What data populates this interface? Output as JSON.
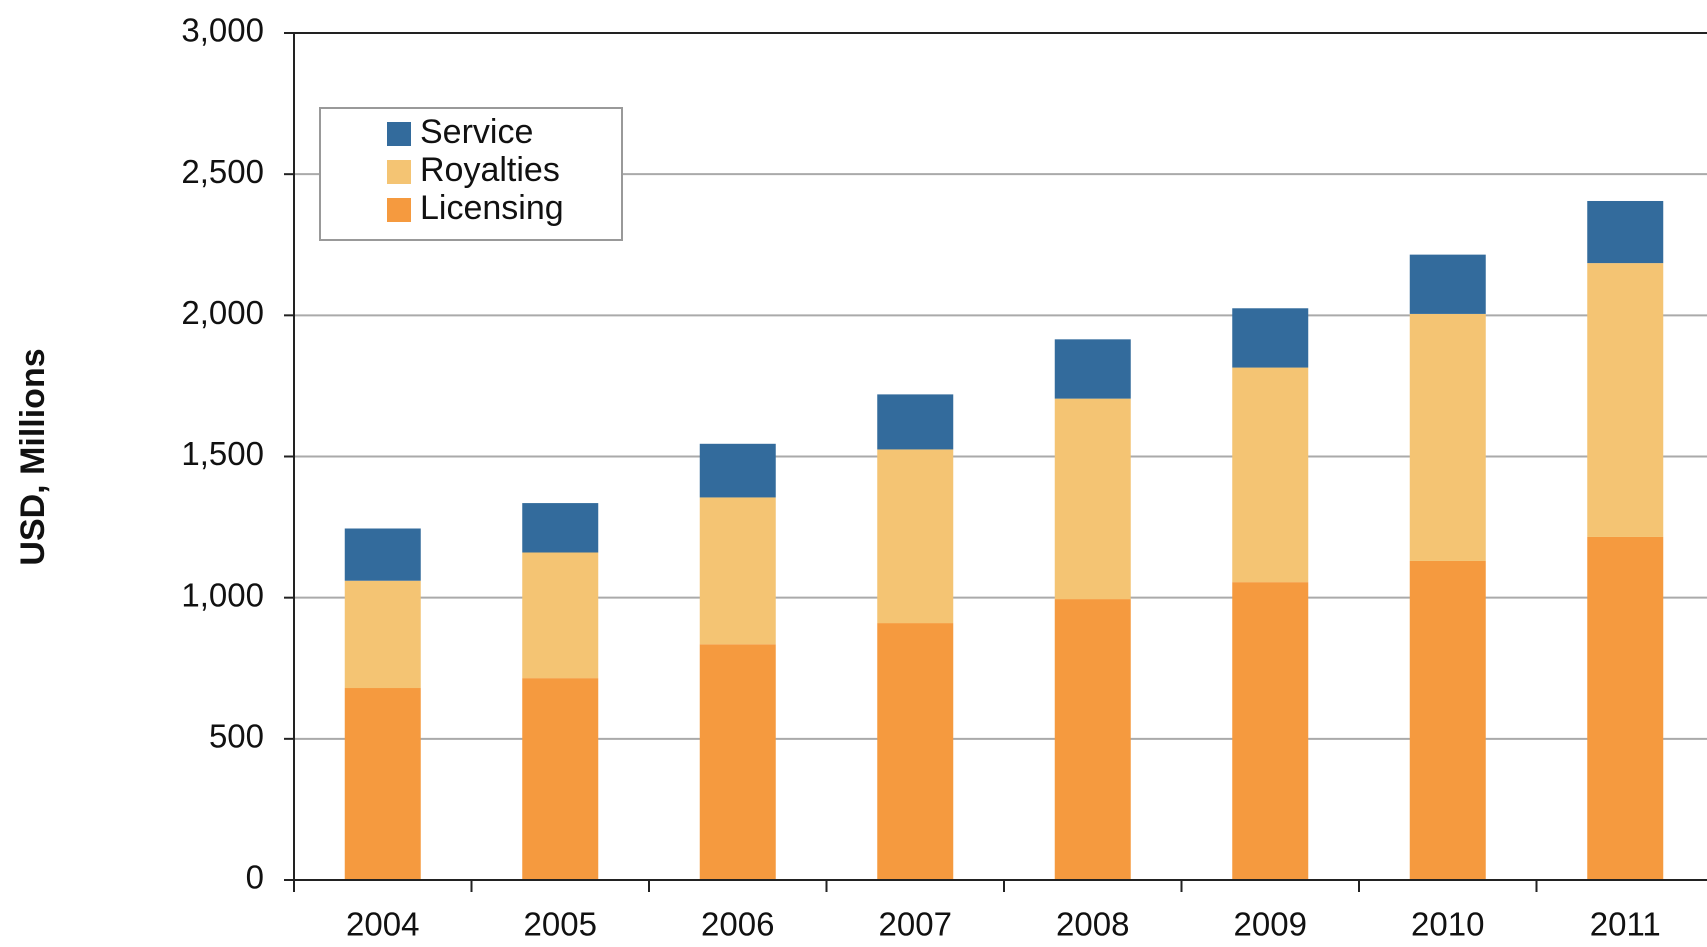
{
  "chart_data": {
    "type": "stacked_bar",
    "y_label": "USD, Millions",
    "categories": [
      "2004",
      "2005",
      "2006",
      "2007",
      "2008",
      "2009",
      "2010",
      "2011"
    ],
    "series": [
      {
        "name": "Licensing",
        "color": "#f59a3f",
        "values": [
          680,
          715,
          835,
          910,
          995,
          1055,
          1130,
          1215
        ]
      },
      {
        "name": "Royalties",
        "color": "#f4c473",
        "values": [
          380,
          445,
          520,
          615,
          710,
          760,
          875,
          970
        ]
      },
      {
        "name": "Service",
        "color": "#336b9c",
        "values": [
          185,
          175,
          190,
          195,
          210,
          210,
          210,
          220
        ]
      }
    ],
    "ylim": [
      0,
      3000
    ],
    "yticks": [
      0,
      500,
      {
        "value": 1000,
        "label": "1,000"
      },
      {
        "value": 1500,
        "label": "1,500"
      },
      {
        "value": 2000,
        "label": "2,000"
      },
      {
        "value": 2500,
        "label": "2,500"
      },
      {
        "value": 3000,
        "label": "3,000"
      }
    ],
    "grid": true,
    "legend": "upper left"
  }
}
